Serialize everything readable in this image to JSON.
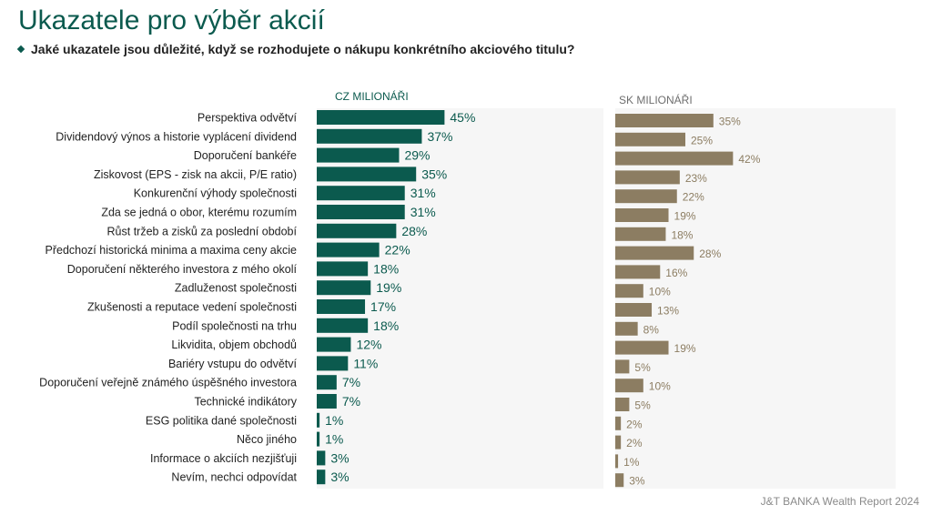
{
  "title": "Ukazatele pro výběr akcií",
  "subtitle": "Jaké ukazatele jsou důležité, když se rozhodujete o nákupu konkrétního akciového titulu?",
  "footer": "J&T BANKA Wealth Report 2024",
  "colors": {
    "cz": "#0b5a4e",
    "sk": "#8c7d62",
    "title": "#0b5a4e",
    "sk_label": "#6e6e6e"
  },
  "chart_data": {
    "type": "bar",
    "orientation": "horizontal",
    "categories": [
      "Perspektiva odvětví",
      "Dividendový výnos a historie vyplácení dividend",
      "Doporučení bankéře",
      "Ziskovost (EPS - zisk na akcii, P/E ratio)",
      "Konkurenční výhody společnosti",
      "Zda se jedná o obor, kterému rozumím",
      "Růst tržeb a zisků za poslední období",
      "Předchozí historická minima a maxima ceny akcie",
      "Doporučení některého investora z mého okolí",
      "Zadluženost společnosti",
      "Zkušenosti a reputace vedení společnosti",
      "Podíl společnosti na trhu",
      "Likvidita, objem obchodů",
      "Bariéry vstupu do odvětví",
      "Doporučení veřejně známého úspěšného investora",
      "Technické indikátory",
      "ESG politika dané společnosti",
      "Něco jiného",
      "Informace o akciích nezjišťuji",
      "Nevím, nechci odpovídat"
    ],
    "series": [
      {
        "name": "CZ MILIONÁŘI",
        "values": [
          45,
          37,
          29,
          35,
          31,
          31,
          28,
          22,
          18,
          19,
          17,
          18,
          12,
          11,
          7,
          7,
          1,
          1,
          3,
          3
        ]
      },
      {
        "name": "SK MILIONÁŘI",
        "values": [
          35,
          25,
          42,
          23,
          22,
          19,
          18,
          28,
          16,
          10,
          13,
          8,
          19,
          5,
          10,
          5,
          2,
          2,
          1,
          3
        ]
      }
    ],
    "value_suffix": "%",
    "xlim": [
      0,
      100
    ],
    "legend": "column headers above each panel"
  }
}
